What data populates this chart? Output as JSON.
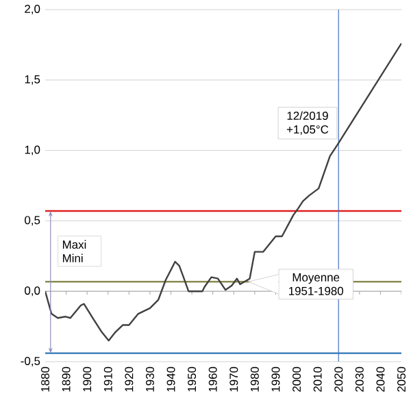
{
  "chart_data": {
    "type": "line",
    "x": [
      1880,
      1883,
      1886,
      1889.6,
      1892,
      1897,
      1898.5,
      1902.7,
      1907,
      1910.3,
      1913.5,
      1917,
      1920,
      1924.4,
      1930,
      1934,
      1937.5,
      1942,
      1944,
      1946,
      1948.4,
      1955,
      1956,
      1959.3,
      1962.4,
      1966,
      1969,
      1971.5,
      1973,
      1977.6,
      1980,
      1984,
      1990,
      1993,
      1998.4,
      2000.8,
      2003,
      2006,
      2010.5,
      2015.9,
      2019.9,
      2050
    ],
    "series": [
      {
        "color": "#404040",
        "values": [
          0.0,
          -0.16,
          -0.19,
          -0.18,
          -0.19,
          -0.1,
          -0.09,
          -0.19,
          -0.29,
          -0.35,
          -0.29,
          -0.24,
          -0.24,
          -0.16,
          -0.12,
          -0.06,
          0.08,
          0.21,
          0.18,
          0.1,
          0.0,
          0.0,
          0.03,
          0.1,
          0.09,
          0.01,
          0.04,
          0.09,
          0.05,
          0.09,
          0.28,
          0.28,
          0.39,
          0.39,
          0.54,
          0.59,
          0.64,
          0.68,
          0.73,
          0.96,
          1.05,
          1.76
        ]
      }
    ],
    "xlim": [
      1880,
      2050
    ],
    "xticks": [
      1880,
      1890,
      1900,
      1910,
      1920,
      1930,
      1940,
      1950,
      1960,
      1970,
      1980,
      1990,
      2000,
      2010,
      2020,
      2030,
      2040,
      2050
    ],
    "ylim": [
      -0.5,
      2.0
    ],
    "yticks": [
      {
        "value": -0.5,
        "label": "-0,5"
      },
      {
        "value": 0,
        "label": "0,0"
      },
      {
        "value": 0.5,
        "label": "0,5"
      },
      {
        "value": 1.0,
        "label": "1,0"
      },
      {
        "value": 1.5,
        "label": "1,5"
      },
      {
        "value": 2.0,
        "label": "2,0"
      }
    ],
    "grid": "y",
    "legend": false,
    "marker": "none",
    "line_style": "solid",
    "ref_lines": [
      {
        "axis": "y",
        "value": 0.57,
        "color": "#e02020"
      },
      {
        "axis": "y",
        "value": -0.44,
        "color": "#2e75b6"
      },
      {
        "axis": "y",
        "value": 0.068,
        "color": "#8b8b50",
        "label": "Moyenne 1951-1980"
      },
      {
        "axis": "x",
        "value": 2020,
        "color": "#4472c4"
      }
    ],
    "annotations": [
      {
        "text": "12/2019 +1,05°C",
        "x": 2020,
        "y": 1.05
      },
      "Maxi Mini"
    ]
  }
}
